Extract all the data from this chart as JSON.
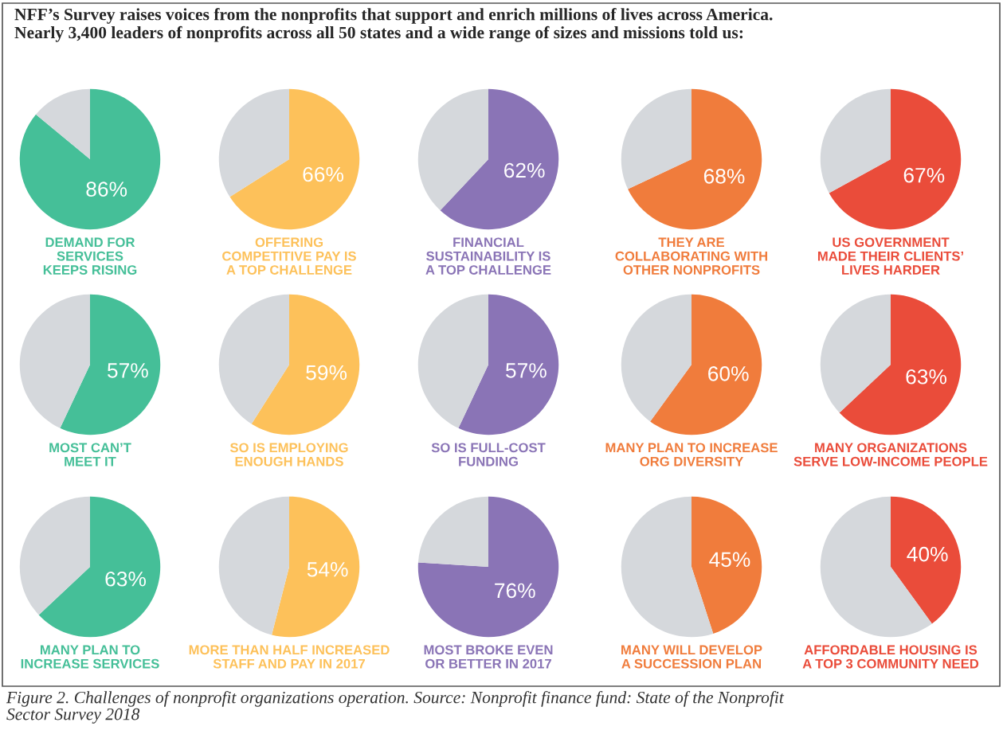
{
  "chart_data": [
    {
      "type": "pie",
      "title": "DEMAND FOR\nSERVICES\nKEEPS RISING",
      "categories": [
        null,
        null
      ],
      "values": [
        86,
        14
      ],
      "colors": [
        "#45bf98",
        "#d5d8dc"
      ],
      "value_labels": [
        "86%",
        null
      ],
      "annotations": [
        "NFF’s Survey raises voices from the nonprofits that support and enrich millions of lives across America.\nNearly 3,400 leaders of nonprofits across all 50 states and a wide range of sizes and missions told us:",
        "Figure 2. Challenges of nonprofit organizations operation. Source: Nonprofit finance fund: State of the Nonprofit\nSector Survey 2018"
      ]
    },
    {
      "type": "pie",
      "title": "OFFERING\nCOMPETITIVE PAY IS\nA TOP CHALLENGE",
      "categories": [
        null,
        null
      ],
      "values": [
        66,
        34
      ],
      "colors": [
        "#fdc15a",
        "#d5d8dc"
      ],
      "value_labels": [
        "66%",
        null
      ]
    },
    {
      "type": "pie",
      "title": "FINANCIAL\nSUSTAINABILITY IS\nA TOP CHALLENGE",
      "categories": [
        null,
        null
      ],
      "values": [
        62,
        38
      ],
      "colors": [
        "#8a74b6",
        "#d5d8dc"
      ],
      "value_labels": [
        "62%",
        null
      ]
    },
    {
      "type": "pie",
      "title": "THEY ARE\nCOLLABORATING WITH\nOTHER NONPROFITS",
      "categories": [
        null,
        null
      ],
      "values": [
        68,
        32
      ],
      "colors": [
        "#f07c3c",
        "#d5d8dc"
      ],
      "value_labels": [
        "68%",
        null
      ]
    },
    {
      "type": "pie",
      "title": "US GOVERNMENT\nMADE THEIR CLIENTS’\nLIVES HARDER",
      "categories": [
        null,
        null
      ],
      "values": [
        67,
        33
      ],
      "colors": [
        "#ea4c3a",
        "#d5d8dc"
      ],
      "value_labels": [
        "67%",
        null
      ]
    },
    {
      "type": "pie",
      "title": "MOST CAN’T\nMEET IT",
      "categories": [
        null,
        null
      ],
      "values": [
        57,
        43
      ],
      "colors": [
        "#45bf98",
        "#d5d8dc"
      ],
      "value_labels": [
        "57%",
        null
      ]
    },
    {
      "type": "pie",
      "title": "SO IS EMPLOYING\nENOUGH HANDS",
      "categories": [
        null,
        null
      ],
      "values": [
        59,
        41
      ],
      "colors": [
        "#fdc15a",
        "#d5d8dc"
      ],
      "value_labels": [
        "59%",
        null
      ]
    },
    {
      "type": "pie",
      "title": "SO IS FULL-COST\nFUNDING",
      "categories": [
        null,
        null
      ],
      "values": [
        57,
        43
      ],
      "colors": [
        "#8a74b6",
        "#d5d8dc"
      ],
      "value_labels": [
        "57%",
        null
      ]
    },
    {
      "type": "pie",
      "title": "MANY PLAN TO INCREASE\nORG DIVERSITY",
      "categories": [
        null,
        null
      ],
      "values": [
        60,
        40
      ],
      "colors": [
        "#f07c3c",
        "#d5d8dc"
      ],
      "value_labels": [
        "60%",
        null
      ]
    },
    {
      "type": "pie",
      "title": "MANY ORGANIZATIONS\nSERVE LOW-INCOME PEOPLE",
      "categories": [
        null,
        null
      ],
      "values": [
        63,
        37
      ],
      "colors": [
        "#ea4c3a",
        "#d5d8dc"
      ],
      "value_labels": [
        "63%",
        null
      ]
    },
    {
      "type": "pie",
      "title": "MANY PLAN TO\nINCREASE SERVICES",
      "categories": [
        null,
        null
      ],
      "values": [
        63,
        37
      ],
      "colors": [
        "#45bf98",
        "#d5d8dc"
      ],
      "value_labels": [
        "63%",
        null
      ]
    },
    {
      "type": "pie",
      "title": "MORE THAN HALF INCREASED\nSTAFF AND PAY IN 2017",
      "categories": [
        null,
        null
      ],
      "values": [
        54,
        46
      ],
      "colors": [
        "#fdc15a",
        "#d5d8dc"
      ],
      "value_labels": [
        "54%",
        null
      ]
    },
    {
      "type": "pie",
      "title": "MOST BROKE EVEN\nOR BETTER IN 2017",
      "categories": [
        null,
        null
      ],
      "values": [
        76,
        24
      ],
      "colors": [
        "#8a74b6",
        "#d5d8dc"
      ],
      "value_labels": [
        "76%",
        null
      ]
    },
    {
      "type": "pie",
      "title": "MANY WILL DEVELOP\nA SUCCESSION PLAN",
      "categories": [
        null,
        null
      ],
      "values": [
        45,
        55
      ],
      "colors": [
        "#f07c3c",
        "#d5d8dc"
      ],
      "value_labels": [
        "45%",
        null
      ]
    },
    {
      "type": "pie",
      "title": "AFFORDABLE HOUSING IS\nA TOP 3 COMMUNITY NEED",
      "categories": [
        null,
        null
      ],
      "values": [
        40,
        60
      ],
      "colors": [
        "#ea4c3a",
        "#d5d8dc"
      ],
      "value_labels": [
        "40%",
        null
      ]
    }
  ]
}
